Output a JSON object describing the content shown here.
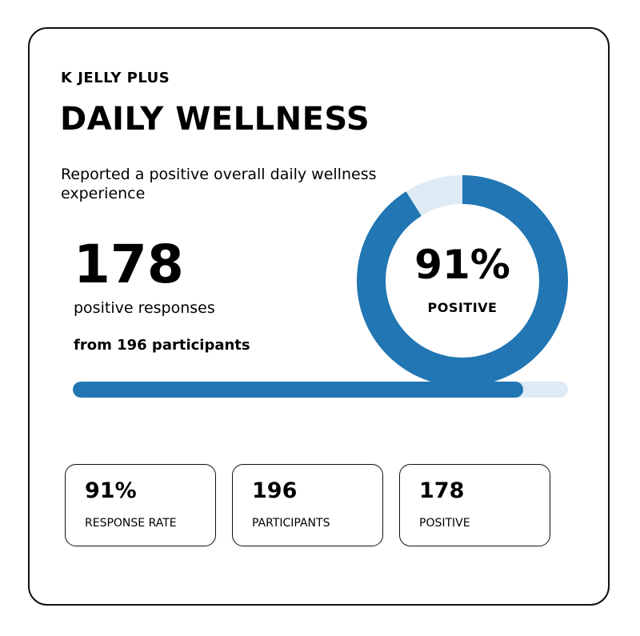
{
  "brand": "K JELLY PLUS",
  "title": "DAILY WELLNESS",
  "description": "Reported a positive overall daily wellness experience",
  "summary": {
    "count": "178",
    "count_caption": "positive responses",
    "from_line": "from 196 participants"
  },
  "donut": {
    "value_label": "91%",
    "caption": "POSITIVE",
    "fraction": 0.91
  },
  "progress": {
    "fraction": 0.91
  },
  "stats": [
    {
      "value": "91%",
      "label": "RESPONSE RATE"
    },
    {
      "value": "196",
      "label": "PARTICIPANTS"
    },
    {
      "value": "178",
      "label": "POSITIVE"
    }
  ],
  "colors": {
    "accent": "#2176b3",
    "track": "#deeaf4",
    "text": "#000000",
    "border": "#111111"
  }
}
